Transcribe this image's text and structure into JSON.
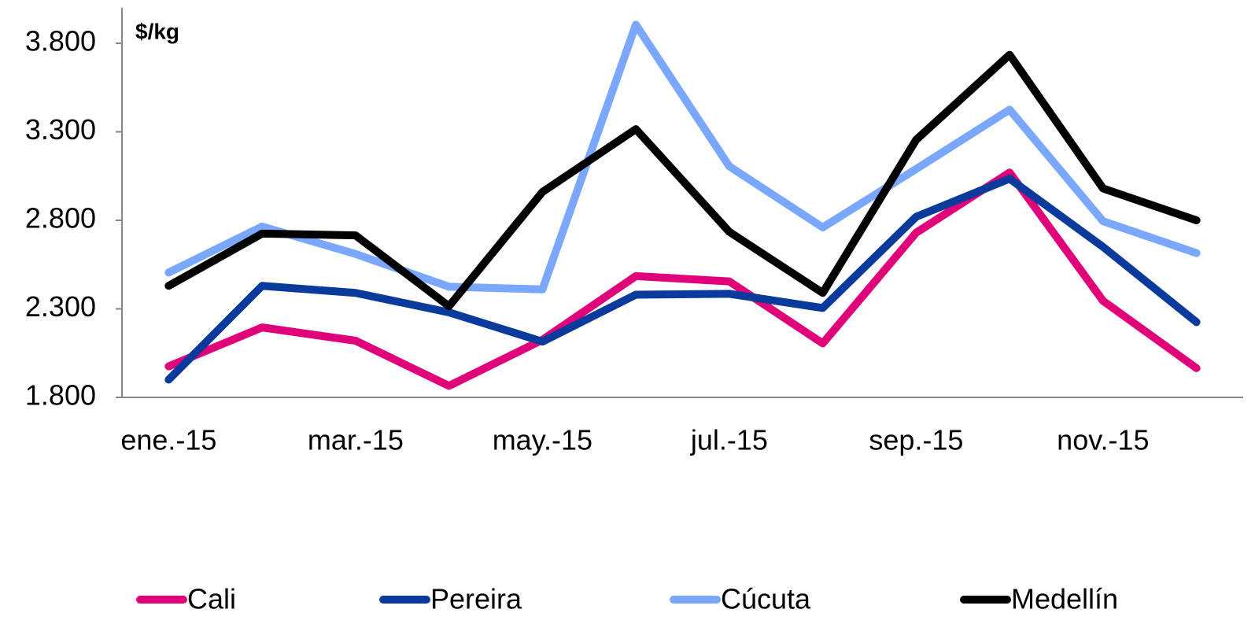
{
  "chart_data": {
    "type": "line",
    "title": "$/kg",
    "categories": [
      "ene.-15",
      null,
      "mar.-15",
      null,
      "may.-15",
      null,
      "jul.-15",
      null,
      "sep.-15",
      null,
      "nov.-15",
      null
    ],
    "series": [
      {
        "name": "Cali",
        "color": "#e0007a",
        "values": [
          1975,
          2195,
          2120,
          1865,
          2125,
          2485,
          2455,
          2105,
          2730,
          3070,
          2345,
          1965
        ]
      },
      {
        "name": "Pereira",
        "color": "#0a3a9c",
        "values": [
          1900,
          2430,
          2390,
          2280,
          2115,
          2380,
          2385,
          2305,
          2820,
          3035,
          2650,
          2225
        ]
      },
      {
        "name": "Cúcuta",
        "color": "#7aa7ff",
        "values": [
          2505,
          2765,
          2610,
          2425,
          2410,
          3905,
          3105,
          2760,
          3090,
          3425,
          2795,
          2615
        ]
      },
      {
        "name": "Medellín",
        "color": "#000000",
        "values": [
          2430,
          2725,
          2715,
          2315,
          2960,
          3315,
          2735,
          2390,
          3255,
          3735,
          2980,
          2800
        ]
      }
    ],
    "ylim": [
      1800,
      4000
    ],
    "yticks": [
      {
        "value": 1800,
        "label": "1.800"
      },
      {
        "value": 2300,
        "label": "2.300"
      },
      {
        "value": 2800,
        "label": "2.800"
      },
      {
        "value": 3300,
        "label": "3.300"
      },
      {
        "value": 3800,
        "label": "3.800"
      }
    ],
    "legend": "bottom"
  }
}
